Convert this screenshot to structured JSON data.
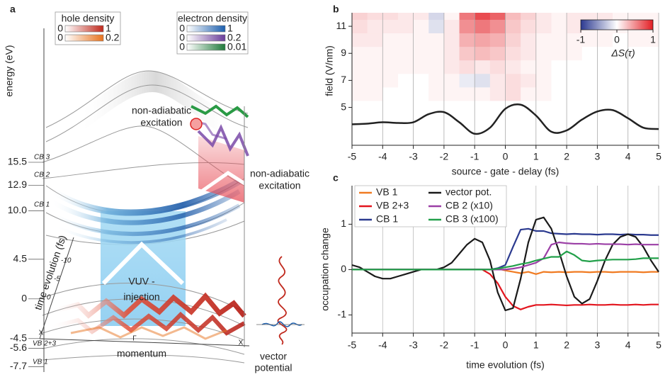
{
  "chart_data": [
    {
      "type": "diagram",
      "label": "a",
      "y_label": "energy (eV)",
      "ylim": [
        -8.3,
        30.7
      ],
      "yticks": [
        15.5,
        12.9,
        {
          "value": 10,
          "label": "10.0"
        },
        4.5,
        0,
        -4.5,
        -5.6,
        -7.7
      ],
      "band_labels": [
        "CB 3",
        "CB 2",
        "CB 1",
        "VB 2+3",
        "VB 1"
      ],
      "time_label": "time evolution (fs)",
      "time_ticks": [
        -10,
        -5,
        0
      ],
      "x_label": "momentum",
      "k_points": [
        "X",
        "Γ",
        "X"
      ],
      "annotations": [
        [
          "non-adiabatic",
          "excitation"
        ],
        [
          "non-adiabatic",
          "excitation"
        ],
        [
          "VUV -",
          "injection"
        ]
      ],
      "potential_label": [
        "vector",
        "potential"
      ],
      "colorbars": [
        {
          "title": "hole density",
          "bars": [
            {
              "min": 0,
              "max": 1,
              "color": "#c0281c"
            },
            {
              "min": 0,
              "max": 0.2,
              "color": "#e8731f"
            }
          ]
        },
        {
          "title": "electron density",
          "bars": [
            {
              "min": 0,
              "max": 1,
              "color": "#1c5fae"
            },
            {
              "min": 0,
              "max": 0.2,
              "color": "#6a3d9a"
            },
            {
              "min": 0,
              "max": 0.01,
              "color": "#1f7a3a"
            }
          ]
        }
      ]
    },
    {
      "type": "heatmap",
      "label": "b",
      "x_label": "source - gate - delay (fs)",
      "y_label": "field (V/nm)",
      "xlim": [
        -5,
        5
      ],
      "xticks": [
        -5,
        -4,
        -3,
        -2,
        -1,
        0,
        1,
        2,
        3,
        4,
        5
      ],
      "ylim": [
        2.2,
        12
      ],
      "yticks": [
        5,
        7,
        9,
        11
      ],
      "grid": "x",
      "x_edges": [
        -5,
        -4.5,
        -4,
        -3.5,
        -3,
        -2.5,
        -2,
        -1.5,
        -1,
        -0.5,
        0,
        0.5,
        1,
        1.5,
        2,
        2.5,
        3,
        3.5,
        4,
        4.5,
        5
      ],
      "y_edges": [
        5.5,
        6.5,
        7.5,
        8.5,
        9.5,
        10.5,
        11.5,
        12
      ],
      "z": [
        [
          0.05,
          0.05,
          0,
          0,
          0,
          0.05,
          0.05,
          0.05,
          0.05,
          0.1,
          0.15,
          0.05,
          0.05,
          0,
          0,
          0,
          0,
          0,
          0,
          0
        ],
        [
          0.05,
          0.05,
          0.05,
          0,
          0,
          0.05,
          0.05,
          -0.1,
          -0.15,
          0.1,
          0.15,
          0.1,
          0.05,
          0,
          0,
          0,
          0,
          0,
          0,
          0
        ],
        [
          0.05,
          0.05,
          0.05,
          0.05,
          0.05,
          0.05,
          0.1,
          0.15,
          0.1,
          0.15,
          0.1,
          0.05,
          0.05,
          0,
          0,
          0,
          0,
          0,
          0,
          0
        ],
        [
          0.05,
          0.05,
          0.05,
          0.05,
          0.05,
          0.05,
          0.1,
          0.25,
          0.3,
          0.25,
          0.15,
          0.1,
          0.05,
          0.05,
          0.05,
          0,
          0,
          0,
          0,
          0
        ],
        [
          0.1,
          0.1,
          0.05,
          0.05,
          0.05,
          0.05,
          0.1,
          0.35,
          0.4,
          0.35,
          0.2,
          0.1,
          0.05,
          0.05,
          0.05,
          0.05,
          0.05,
          0,
          0.05,
          0.05
        ],
        [
          0.15,
          0.1,
          0.1,
          0.1,
          0.05,
          -0.15,
          0.1,
          0.5,
          0.6,
          0.5,
          0.25,
          0.15,
          0.1,
          0.05,
          0.1,
          0.05,
          0.05,
          0.05,
          0.05,
          0.05
        ],
        [
          0.2,
          0.15,
          0.15,
          0.1,
          0.1,
          -0.2,
          0.05,
          0.6,
          0.8,
          0.7,
          0.3,
          0.2,
          0.1,
          0.05,
          0.1,
          0.1,
          0.1,
          0.05,
          0.05,
          0.05
        ]
      ],
      "cmap": [
        "#2b3990",
        "#ffffff",
        "#e31e24"
      ],
      "clim": [
        -1,
        1
      ],
      "cticks": [
        -1,
        0,
        1
      ],
      "colorbar_label": "ΔS(τ)",
      "line": {
        "color": "#222222",
        "x": [
          -5,
          -4.5,
          -4,
          -3.5,
          -3,
          -2.5,
          -2,
          -1.5,
          -1,
          -0.5,
          0,
          0.5,
          1,
          1.5,
          2,
          2.5,
          3,
          3.5,
          4,
          4.5,
          5
        ],
        "values": [
          3.75,
          3.8,
          3.9,
          3.85,
          3.9,
          4.5,
          4.65,
          3.9,
          3.05,
          3.5,
          4.9,
          5.2,
          4.4,
          3.2,
          3.3,
          4.1,
          4.7,
          4.8,
          4.2,
          3.5,
          3.4
        ]
      }
    },
    {
      "type": "line",
      "label": "c",
      "x_label": "time evolution (fs)",
      "y_label": "occupation change",
      "xlim": [
        -5,
        5
      ],
      "xticks": [
        -5,
        -4,
        -3,
        -2,
        -1,
        0,
        1,
        2,
        3,
        4,
        5
      ],
      "ylim": [
        -1.4,
        1.85
      ],
      "yticks": [
        -1,
        0,
        1
      ],
      "grid": "x",
      "legend": "upper left",
      "x": [
        -5,
        -4.75,
        -4.5,
        -4.25,
        -4,
        -3.75,
        -3.5,
        -3.25,
        -3,
        -2.75,
        -2.5,
        -2.25,
        -2,
        -1.75,
        -1.5,
        -1.25,
        -1,
        -0.75,
        -0.5,
        -0.25,
        0,
        0.25,
        0.5,
        0.75,
        1,
        1.25,
        1.5,
        1.75,
        2,
        2.25,
        2.5,
        2.75,
        3,
        3.25,
        3.5,
        3.75,
        4,
        4.25,
        4.5,
        4.75,
        5
      ],
      "series": [
        {
          "name": "VB 1",
          "color": "#f07b22",
          "values": [
            0,
            0,
            0,
            0,
            0,
            0,
            0,
            0,
            0,
            0,
            0,
            0,
            0,
            0,
            0,
            0,
            0,
            0,
            0,
            0.02,
            -0.02,
            -0.05,
            -0.08,
            -0.05,
            -0.1,
            -0.05,
            -0.06,
            -0.05,
            -0.06,
            -0.05,
            -0.05,
            -0.06,
            -0.05,
            -0.05,
            -0.06,
            -0.05,
            -0.05,
            -0.05,
            -0.06,
            -0.05,
            -0.05
          ]
        },
        {
          "name": "VB 2+3",
          "color": "#e3151e",
          "values": [
            0,
            0,
            0,
            0,
            0,
            0,
            0,
            0,
            0,
            0,
            0,
            0,
            0,
            0,
            0,
            0,
            0,
            0,
            -0.1,
            -0.3,
            -0.6,
            -0.8,
            -0.88,
            -0.82,
            -0.78,
            -0.78,
            -0.77,
            -0.78,
            -0.79,
            -0.78,
            -0.78,
            -0.77,
            -0.78,
            -0.78,
            -0.77,
            -0.78,
            -0.78,
            -0.77,
            -0.78,
            -0.77,
            -0.77
          ]
        },
        {
          "name": "CB 1",
          "color": "#2b3a8f",
          "values": [
            0,
            0,
            0,
            0,
            0,
            0,
            0,
            0,
            0,
            0,
            0,
            0,
            0,
            0,
            0,
            0,
            0,
            0,
            0,
            0.03,
            0.1,
            0.5,
            0.88,
            0.9,
            0.85,
            0.85,
            0.8,
            0.79,
            0.78,
            0.79,
            0.78,
            0.78,
            0.77,
            0.78,
            0.78,
            0.77,
            0.78,
            0.77,
            0.77,
            0.76,
            0.76
          ]
        },
        {
          "name": "vector pot.",
          "color": "#1a1a1a",
          "values": [
            0.1,
            0.05,
            -0.05,
            -0.15,
            -0.2,
            -0.2,
            -0.15,
            -0.1,
            -0.05,
            0,
            0,
            0,
            0.05,
            0.15,
            0.35,
            0.55,
            0.68,
            0.6,
            0.2,
            -0.5,
            -0.9,
            -0.85,
            -0.2,
            0.6,
            1.1,
            1.15,
            0.9,
            0.4,
            -0.15,
            -0.6,
            -0.75,
            -0.65,
            -0.25,
            0.2,
            0.55,
            0.72,
            0.78,
            0.72,
            0.5,
            0.2,
            -0.05
          ]
        },
        {
          "name": "CB 2 (x10)",
          "color": "#9b3fa6",
          "values": [
            0,
            0,
            0,
            0,
            0,
            0,
            0,
            0,
            0,
            0,
            0,
            0,
            0,
            0,
            0,
            0,
            0,
            0,
            0,
            0,
            0,
            0.02,
            0.05,
            0.1,
            0.15,
            0.25,
            0.55,
            0.6,
            0.58,
            0.57,
            0.57,
            0.56,
            0.57,
            0.56,
            0.56,
            0.56,
            0.55,
            0.56,
            0.55,
            0.55,
            0.55
          ]
        },
        {
          "name": "CB 3 (x100)",
          "color": "#22a04a",
          "values": [
            0,
            0,
            0,
            0,
            0,
            0,
            0,
            0,
            0,
            0,
            0,
            0,
            0,
            0,
            0,
            0,
            0,
            0,
            0,
            0.02,
            0.05,
            0.08,
            0.12,
            0.15,
            0.2,
            0.24,
            0.28,
            0.28,
            0.4,
            0.32,
            0.2,
            0.18,
            0.2,
            0.21,
            0.22,
            0.22,
            0.22,
            0.23,
            0.25,
            0.25,
            0.25
          ]
        }
      ]
    }
  ]
}
